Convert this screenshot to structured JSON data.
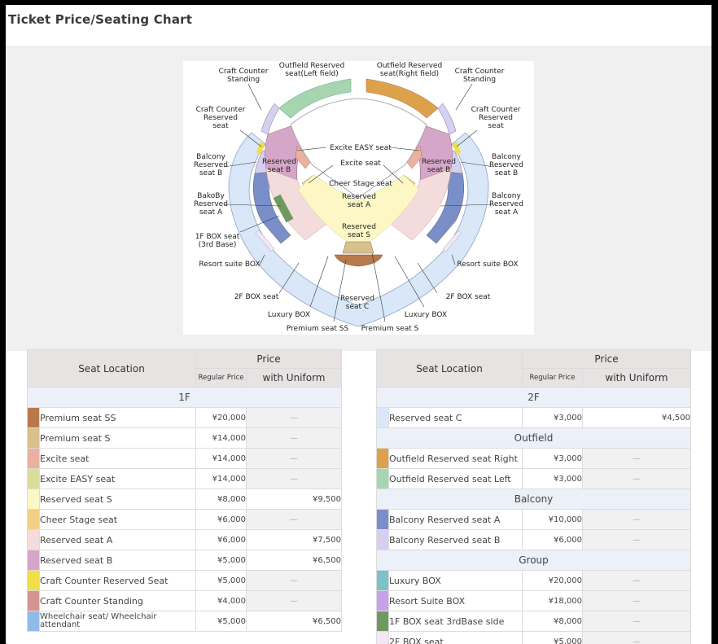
{
  "page": {
    "title": "Ticket Price/Seating Chart"
  },
  "chart_labels": [
    "Craft Counter Standing",
    "Outfield Reserved seat(Left field)",
    "Outfield Reserved seat(Right field)",
    "Craft Counter Standing",
    "Craft Counter Reserved seat",
    "Craft Counter Reserved seat",
    "Excite EASY seat",
    "Balcony Reserved seat B",
    "Reserved seat B",
    "Excite seat",
    "Reserved seat B",
    "Balcony Reserved seat B",
    "Cheer Stage seat",
    "BakoBy Reserved seat A",
    "Reserved seat A",
    "Balcony Reserved seat A",
    "Reserved seat S",
    "1F BOX seat (3rd Base)",
    "Resort suite BOX",
    "Resort suite BOX",
    "2F BOX seat",
    "2F BOX seat",
    "Reserved seat C",
    "Luxury BOX",
    "Luxury BOX",
    "Premium seat SS",
    "Premium seat S"
  ],
  "headers": {
    "location": "Seat Location",
    "price": "Price",
    "regular": "Regular Price",
    "uniform": "with Uniform"
  },
  "left_table": {
    "section": "1F",
    "rows": [
      {
        "color": "#b87a4b",
        "name": "Premium seat SS",
        "regular": "¥20,000",
        "uniform": "—"
      },
      {
        "color": "#d8c08d",
        "name": "Premium seat S",
        "regular": "¥14,000",
        "uniform": "—"
      },
      {
        "color": "#eab1a0",
        "name": "Excite  seat",
        "regular": "¥14,000",
        "uniform": "—"
      },
      {
        "color": "#d9df9a",
        "name": "Excite EASY seat",
        "regular": "¥14,000",
        "uniform": "—"
      },
      {
        "color": "#fcf7c4",
        "name": "Reserved seat S",
        "regular": "¥8,000",
        "uniform": "¥9,500"
      },
      {
        "color": "#f2cf85",
        "name": "Cheer Stage seat",
        "regular": "¥6,000",
        "uniform": "—"
      },
      {
        "color": "#f5dcdc",
        "name": "Reserved seat A",
        "regular": "¥6,000",
        "uniform": "¥7,500"
      },
      {
        "color": "#d6a6c8",
        "name": "Reserved seat B",
        "regular": "¥5,000",
        "uniform": "¥6,500"
      },
      {
        "color": "#f0df4a",
        "name": "Craft Counter Reserved Seat",
        "regular": "¥5,000",
        "uniform": "—"
      },
      {
        "color": "#d49492",
        "name": "Craft Counter Standing",
        "regular": "¥4,000",
        "uniform": "—"
      },
      {
        "color": "#8fbce6",
        "name": "Wheelchair seat/ Wheelchair attendant",
        "regular": "¥5,000",
        "uniform": "¥6,500"
      }
    ]
  },
  "right_table": {
    "sections": [
      {
        "title": "2F",
        "rows": [
          {
            "color": "#d9e7f8",
            "name": "Reserved seat C",
            "regular": "¥3,000",
            "uniform": "¥4,500"
          }
        ]
      },
      {
        "title": "Outfield",
        "rows": [
          {
            "color": "#dea14b",
            "name": "Outfield Reserved seat Right",
            "regular": "¥3,000",
            "uniform": "—"
          },
          {
            "color": "#a7d5b0",
            "name": "Outfield Reserved seat Left",
            "regular": "¥3,000",
            "uniform": "—"
          }
        ]
      },
      {
        "title": "Balcony",
        "rows": [
          {
            "color": "#7a8fc9",
            "name": "Balcony Reserved seat A",
            "regular": "¥10,000",
            "uniform": "—"
          },
          {
            "color": "#d5d0f2",
            "name": "Balcony Reserved seat B",
            "regular": "¥6,000",
            "uniform": "—"
          }
        ]
      },
      {
        "title": "Group",
        "rows": [
          {
            "color": "#7cc2c8",
            "name": "Luxury BOX",
            "regular": "¥20,000",
            "uniform": "—"
          },
          {
            "color": "#c8a0ea",
            "name": "Resort Suite BOX",
            "regular": "¥18,000",
            "uniform": "—"
          },
          {
            "color": "#6f9a5f",
            "name": "1F BOX seat 3rdBase side",
            "regular": "¥8,000",
            "uniform": "—"
          },
          {
            "color": "#f3e6f6",
            "name": "2F BOX seat",
            "regular": "¥5,000",
            "uniform": "—"
          }
        ]
      }
    ]
  }
}
